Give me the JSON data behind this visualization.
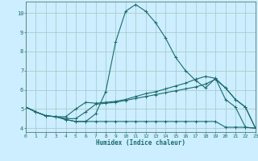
{
  "title": "",
  "xlabel": "Humidex (Indice chaleur)",
  "bg_color": "#cceeff",
  "grid_color": "#aacccc",
  "line_color": "#1a6b6b",
  "xlim": [
    0,
    23
  ],
  "ylim": [
    3.8,
    10.6
  ],
  "yticks": [
    4,
    5,
    6,
    7,
    8,
    9,
    10
  ],
  "xticks": [
    0,
    1,
    2,
    3,
    4,
    5,
    6,
    7,
    8,
    9,
    10,
    11,
    12,
    13,
    14,
    15,
    16,
    17,
    18,
    19,
    20,
    21,
    22,
    23
  ],
  "lines": [
    {
      "x": [
        0,
        1,
        2,
        3,
        4,
        5,
        6,
        7,
        8,
        9,
        10,
        11,
        12,
        13,
        14,
        15,
        16,
        17,
        18,
        19,
        20,
        21,
        22,
        23
      ],
      "y": [
        5.1,
        4.85,
        4.65,
        4.6,
        4.45,
        4.35,
        4.35,
        4.75,
        5.9,
        8.5,
        10.1,
        10.45,
        10.1,
        9.5,
        8.7,
        7.7,
        7.0,
        6.5,
        6.1,
        6.6,
        5.5,
        5.1,
        4.05,
        4.0
      ]
    },
    {
      "x": [
        0,
        1,
        2,
        3,
        4,
        5,
        6,
        7,
        8,
        9,
        10,
        11,
        12,
        13,
        14,
        15,
        16,
        17,
        18,
        19,
        20,
        21,
        22,
        23
      ],
      "y": [
        5.1,
        4.85,
        4.65,
        4.6,
        4.45,
        4.35,
        4.35,
        4.35,
        4.35,
        4.35,
        4.35,
        4.35,
        4.35,
        4.35,
        4.35,
        4.35,
        4.35,
        4.35,
        4.35,
        4.35,
        4.05,
        4.05,
        4.05,
        4.0
      ]
    },
    {
      "x": [
        0,
        1,
        2,
        3,
        4,
        5,
        6,
        7,
        8,
        9,
        10,
        11,
        12,
        13,
        14,
        15,
        16,
        17,
        18,
        19,
        20,
        21,
        22,
        23
      ],
      "y": [
        5.1,
        4.85,
        4.65,
        4.6,
        4.5,
        4.5,
        4.85,
        5.25,
        5.3,
        5.35,
        5.45,
        5.55,
        5.65,
        5.75,
        5.85,
        5.95,
        6.05,
        6.15,
        6.3,
        6.55,
        6.1,
        5.5,
        5.1,
        4.0
      ]
    },
    {
      "x": [
        0,
        1,
        2,
        3,
        4,
        5,
        6,
        7,
        8,
        9,
        10,
        11,
        12,
        13,
        14,
        15,
        16,
        17,
        18,
        19,
        20,
        21,
        22,
        23
      ],
      "y": [
        5.1,
        4.85,
        4.65,
        4.6,
        4.6,
        5.0,
        5.35,
        5.3,
        5.35,
        5.4,
        5.5,
        5.65,
        5.8,
        5.9,
        6.05,
        6.2,
        6.35,
        6.55,
        6.7,
        6.6,
        6.1,
        5.5,
        5.1,
        4.0
      ]
    }
  ]
}
